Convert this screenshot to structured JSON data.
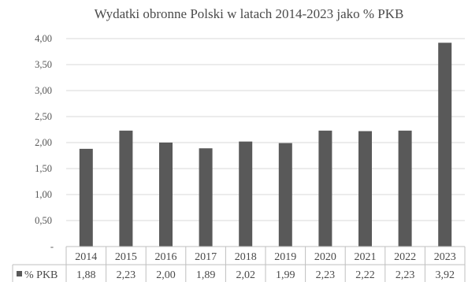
{
  "chart_data": {
    "type": "bar",
    "title": "Wydatki obronne Polski w latach 2014-2023 jako % PKB",
    "categories": [
      "2014",
      "2015",
      "2016",
      "2017",
      "2018",
      "2019",
      "2020",
      "2021",
      "2022",
      "2023"
    ],
    "series": [
      {
        "name": "% PKB",
        "values": [
          1.88,
          2.23,
          2.0,
          1.89,
          2.02,
          1.99,
          2.23,
          2.22,
          2.23,
          3.92
        ],
        "value_labels": [
          "1,88",
          "2,23",
          "2,00",
          "1,89",
          "2,02",
          "1,99",
          "2,23",
          "2,22",
          "2,23",
          "3,92"
        ],
        "color": "#595959"
      }
    ],
    "ylim": [
      0,
      4
    ],
    "y_ticks": [
      0,
      0.5,
      1.0,
      1.5,
      2.0,
      2.5,
      3.0,
      3.5,
      4.0
    ],
    "y_tick_labels": [
      "-",
      "0,50",
      "1,00",
      "1,50",
      "2,00",
      "2,50",
      "3,00",
      "3,50",
      "4,00"
    ],
    "grid": true,
    "data_table": true,
    "legend": "data-table-left",
    "xlabel": "",
    "ylabel": ""
  }
}
